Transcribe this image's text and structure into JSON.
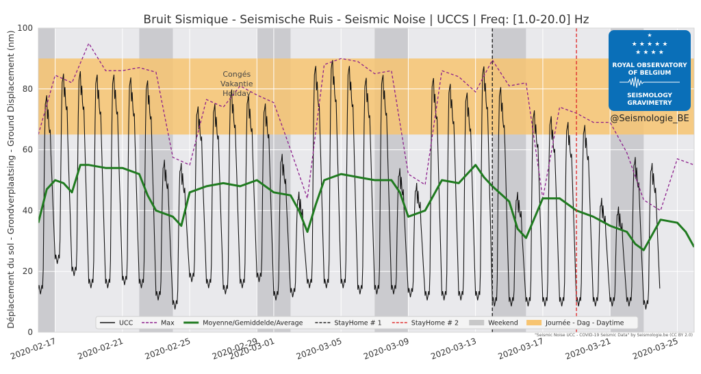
{
  "chart_data": {
    "type": "line",
    "title": "Bruit Sismique - Seismische Ruis - Seismic Noise | UCCS | Freq: [1.0-20.0] Hz",
    "ylabel": "Déplacement du sol - Grondverplaatsing - Ground Displacement (nm)",
    "xlabel": "",
    "ylim": [
      0,
      100
    ],
    "yticks": [
      0,
      20,
      40,
      60,
      80,
      100
    ],
    "xlim": [
      "2020-02-16",
      "2020-03-26"
    ],
    "xticks": [
      "2020-02-17",
      "2020-02-21",
      "2020-02-25",
      "2020-02-29",
      "2020-03-01",
      "2020-03-05",
      "2020-03-09",
      "2020-03-13",
      "2020-03-17",
      "2020-03-21",
      "2020-03-25"
    ],
    "grid": true,
    "legend_position": "bottom-center",
    "daytime_band": [
      65,
      90
    ],
    "weekends": [
      [
        "2020-02-15",
        "2020-02-17"
      ],
      [
        "2020-02-22",
        "2020-02-24"
      ],
      [
        "2020-02-29",
        "2020-03-02"
      ],
      [
        "2020-03-07",
        "2020-03-09"
      ],
      [
        "2020-03-14",
        "2020-03-16"
      ],
      [
        "2020-03-21",
        "2020-03-23"
      ]
    ],
    "stayhome1": "2020-03-14",
    "stayhome2": "2020-03-19",
    "annotation": [
      "Congés",
      "Vakantie",
      "Holiday"
    ],
    "annotation_x": "2020-02-28",
    "annotation_y": 84,
    "series": [
      {
        "name": "UCC",
        "color": "#111111",
        "daily_peaks": [
          78,
          85,
          86,
          85,
          85,
          84,
          83,
          56,
          55,
          74,
          75,
          80,
          78,
          75,
          58,
          45,
          88,
          90,
          88,
          84,
          85,
          53,
          48,
          84,
          82,
          79,
          88,
          81,
          45,
          73,
          71,
          69,
          68,
          43,
          40,
          57,
          55
        ],
        "daily_lows": [
          14,
          24,
          20,
          16,
          16,
          17,
          16,
          12,
          9,
          18,
          16,
          14,
          16,
          18,
          12,
          13,
          16,
          16,
          16,
          14,
          14,
          14,
          13,
          12,
          12,
          12,
          12,
          10,
          10,
          10,
          10,
          10,
          10,
          10,
          10,
          10,
          9
        ]
      },
      {
        "name": "Max",
        "color": "#8b1c8b",
        "x": [
          "2020-02-16",
          "2020-02-17",
          "2020-02-18",
          "2020-02-19",
          "2020-02-20",
          "2020-02-21",
          "2020-02-22",
          "2020-02-23",
          "2020-02-24",
          "2020-02-25",
          "2020-02-26",
          "2020-02-27",
          "2020-02-28",
          "2020-02-29",
          "2020-03-01",
          "2020-03-02",
          "2020-03-03",
          "2020-03-04",
          "2020-03-05",
          "2020-03-06",
          "2020-03-07",
          "2020-03-08",
          "2020-03-09",
          "2020-03-10",
          "2020-03-11",
          "2020-03-12",
          "2020-03-13",
          "2020-03-14",
          "2020-03-15",
          "2020-03-16",
          "2020-03-17",
          "2020-03-18",
          "2020-03-19",
          "2020-03-20",
          "2020-03-21",
          "2020-03-22",
          "2020-03-23",
          "2020-03-24",
          "2020-03-25",
          "2020-03-26"
        ],
        "values": [
          65,
          84.5,
          82,
          95,
          86,
          86,
          87,
          85.5,
          57.5,
          55,
          76.5,
          74,
          81,
          78,
          75.5,
          60,
          44,
          88,
          90,
          89,
          85,
          86,
          52,
          48.5,
          86,
          84,
          79,
          89.5,
          81,
          82,
          44,
          74,
          72,
          69,
          69,
          59,
          43.5,
          40,
          57,
          55
        ]
      },
      {
        "name": "Moyenne/Gemiddelde/Average",
        "color": "#1f7a1f",
        "x": [
          "2020-02-16",
          "2020-02-16.5",
          "2020-02-17",
          "2020-02-17.5",
          "2020-02-18",
          "2020-02-18.5",
          "2020-02-19",
          "2020-02-20",
          "2020-02-21",
          "2020-02-22",
          "2020-02-22.5",
          "2020-02-23",
          "2020-02-24",
          "2020-02-24.5",
          "2020-02-25",
          "2020-02-26",
          "2020-02-27",
          "2020-02-28",
          "2020-02-29",
          "2020-03-01",
          "2020-03-02",
          "2020-03-02.5",
          "2020-03-03",
          "2020-03-03.5",
          "2020-03-04",
          "2020-03-05",
          "2020-03-06",
          "2020-03-07",
          "2020-03-08",
          "2020-03-08.5",
          "2020-03-09",
          "2020-03-10",
          "2020-03-11",
          "2020-03-12",
          "2020-03-13",
          "2020-03-13.5",
          "2020-03-14",
          "2020-03-15",
          "2020-03-15.5",
          "2020-03-16",
          "2020-03-17",
          "2020-03-18",
          "2020-03-19",
          "2020-03-20",
          "2020-03-21",
          "2020-03-22",
          "2020-03-22.5",
          "2020-03-23",
          "2020-03-24",
          "2020-03-25",
          "2020-03-25.5",
          "2020-03-26"
        ],
        "values": [
          36,
          47,
          50,
          49,
          46,
          55,
          55,
          54,
          54,
          52,
          45,
          40,
          38,
          35,
          46,
          48,
          49,
          48,
          50,
          46,
          45,
          40,
          33,
          42,
          50,
          52,
          51,
          50,
          50,
          46,
          38,
          40,
          50,
          49,
          55,
          51,
          48,
          43,
          34,
          31,
          44,
          44,
          40,
          38,
          35,
          33,
          29,
          27,
          37,
          36,
          33,
          28
        ]
      }
    ],
    "legend": [
      {
        "label": "UCC",
        "style": "line",
        "color": "#111111"
      },
      {
        "label": "Max",
        "style": "dashed",
        "color": "#8b1c8b"
      },
      {
        "label": "Moyenne/Gemiddelde/Average",
        "style": "thick",
        "color": "#1f7a1f"
      },
      {
        "label": "StayHome # 1",
        "style": "dashed",
        "color": "#222222"
      },
      {
        "label": "StayHome # 2",
        "style": "dashed",
        "color": "#e03030"
      },
      {
        "label": "Weekend",
        "style": "patch",
        "color": "#c8c8c8"
      },
      {
        "label": "Journée - Dag - Daytime",
        "style": "patch",
        "color": "#f7c471"
      }
    ],
    "credit": "\"Seismic Noise UCC - COVID-19 Seismic Data\" by Seismologie.be (CC BY 2.0)",
    "logo": {
      "stars": "★ ★ ★ ★ ★",
      "line1": "ROYAL OBSERVATORY",
      "line2": "OF BELGIUM",
      "line3": "SEISMOLOGY",
      "line4": "GRAVIMETRY",
      "handle": "@Seismologie_BE"
    }
  }
}
